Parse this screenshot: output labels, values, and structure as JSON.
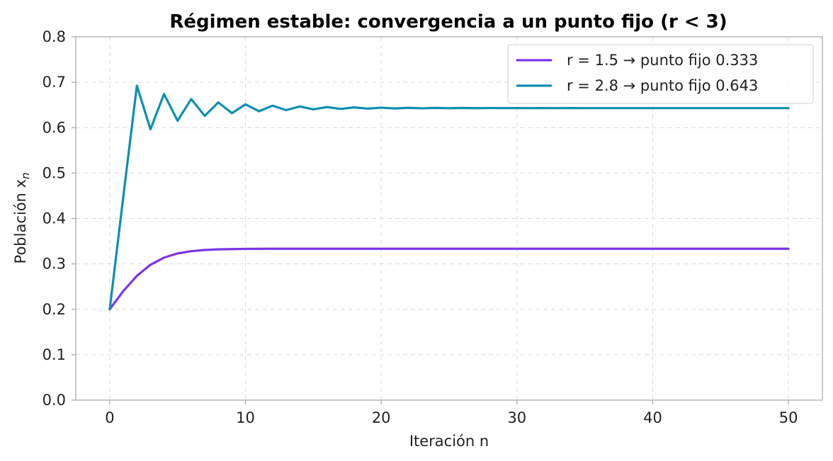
{
  "chart_data": {
    "type": "line",
    "title": "Régimen estable: convergencia a un punto fijo (r < 3)",
    "xlabel": "Iteración n",
    "ylabel": "Población x",
    "ylabel_sub": "n",
    "xlim": [
      -2.5,
      52.5
    ],
    "ylim": [
      0,
      0.8
    ],
    "xticks": [
      0,
      10,
      20,
      30,
      40,
      50
    ],
    "yticks": [
      0.0,
      0.1,
      0.2,
      0.3,
      0.4,
      0.5,
      0.6,
      0.7,
      0.8
    ],
    "ytick_labels": [
      "0.0",
      "0.1",
      "0.2",
      "0.3",
      "0.4",
      "0.5",
      "0.6",
      "0.7",
      "0.8"
    ],
    "grid": true,
    "legend_position": "top-right",
    "series": [
      {
        "name": "r = 1.5  →  punto fijo 0.333",
        "color": "#7b35e6",
        "x0": 0,
        "values": [
          0.2,
          0.24,
          0.2736,
          0.298,
          0.3138,
          0.323,
          0.328,
          0.3306,
          0.332,
          0.3326,
          0.333,
          0.3332,
          0.3333,
          0.3333,
          0.3333,
          0.3333,
          0.3333,
          0.3333,
          0.3333,
          0.3333,
          0.3333,
          0.3333,
          0.3333,
          0.3333,
          0.3333,
          0.3333,
          0.3333,
          0.3333,
          0.3333,
          0.3333,
          0.3333,
          0.3333,
          0.3333,
          0.3333,
          0.3333,
          0.3333,
          0.3333,
          0.3333,
          0.3333,
          0.3333,
          0.3333,
          0.3333,
          0.3333,
          0.3333,
          0.3333,
          0.3333,
          0.3333,
          0.3333,
          0.3333,
          0.3333,
          0.3333
        ]
      },
      {
        "name": "r = 2.8  →  punto fijo 0.643",
        "color": "#0e8fb0",
        "x0": 0,
        "values": [
          0.2,
          0.448,
          0.6924,
          0.5963,
          0.674,
          0.6152,
          0.6629,
          0.6259,
          0.6556,
          0.632,
          0.6513,
          0.6361,
          0.6484,
          0.6386,
          0.6466,
          0.6402,
          0.6454,
          0.6412,
          0.6446,
          0.6419,
          0.644,
          0.6423,
          0.6437,
          0.6426,
          0.6435,
          0.6428,
          0.6433,
          0.6429,
          0.6432,
          0.643,
          0.6431,
          0.643,
          0.6431,
          0.643,
          0.6431,
          0.643,
          0.643,
          0.643,
          0.643,
          0.643,
          0.643,
          0.643,
          0.643,
          0.643,
          0.643,
          0.643,
          0.643,
          0.643,
          0.643,
          0.643,
          0.643
        ]
      }
    ]
  }
}
